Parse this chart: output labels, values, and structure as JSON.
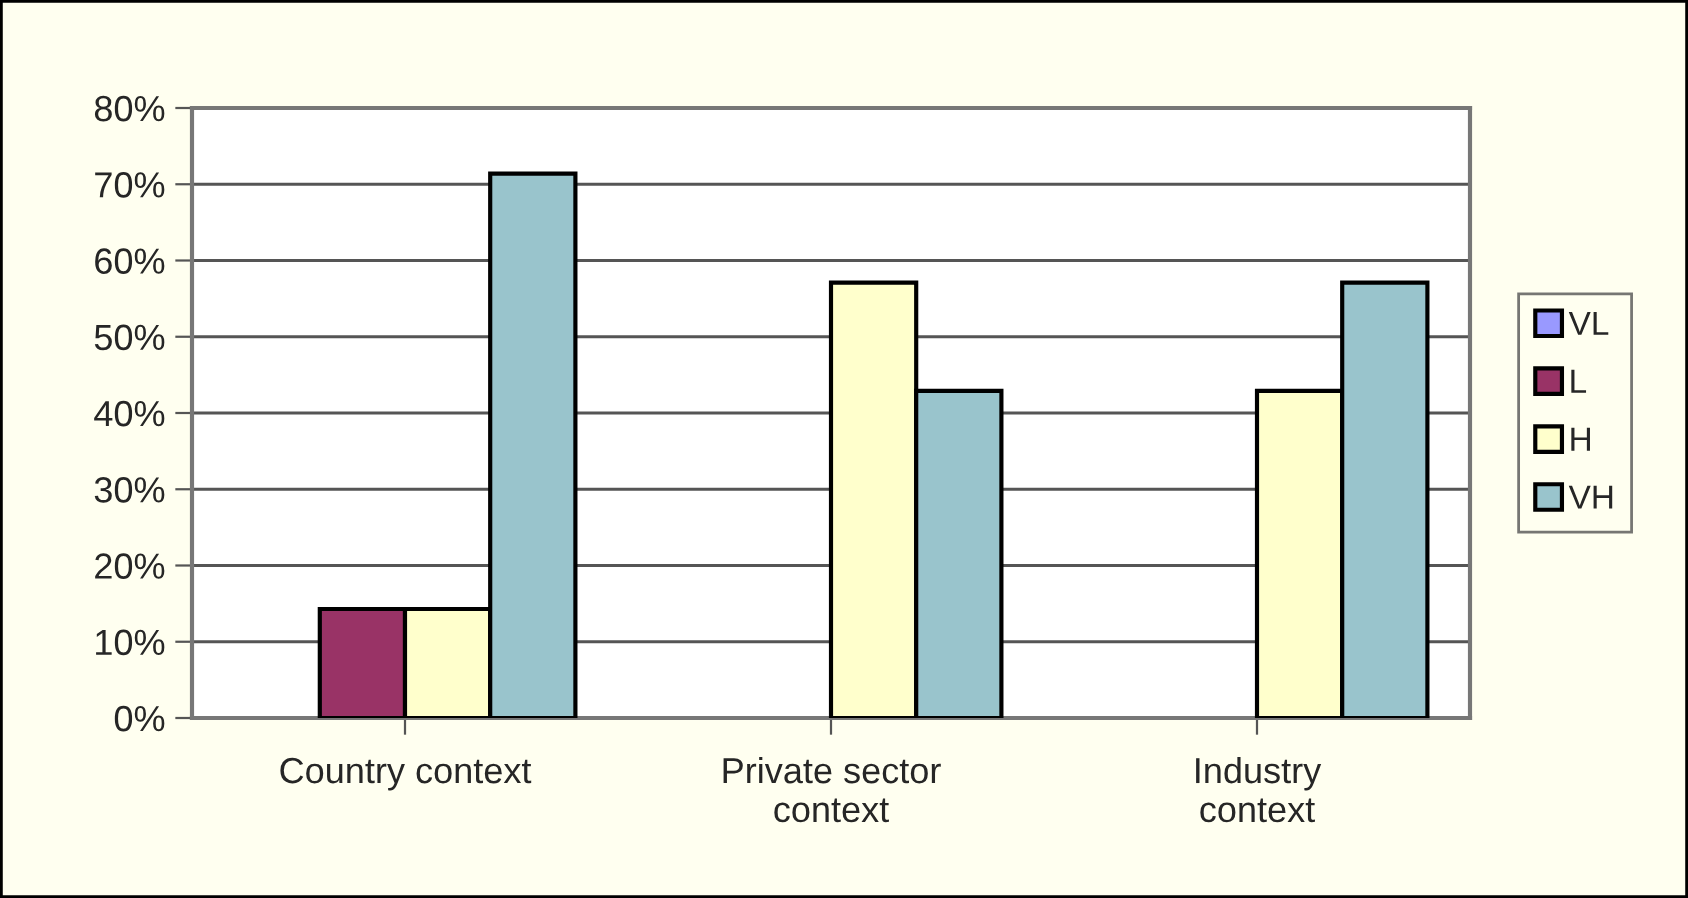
{
  "chart_data": {
    "type": "bar",
    "categories": [
      "Country context",
      "Private sector\ncontext",
      "Industry\ncontext"
    ],
    "series": [
      {
        "name": "VL",
        "color": "#9999ff",
        "values": [
          null,
          null,
          null
        ]
      },
      {
        "name": "L",
        "color": "#993366",
        "values": [
          14.3,
          null,
          null
        ]
      },
      {
        "name": "H",
        "color": "#ffffcc",
        "values": [
          14.3,
          57.1,
          42.9
        ]
      },
      {
        "name": "VH",
        "color": "#99c4cc",
        "values": [
          71.4,
          42.9,
          57.1
        ]
      }
    ],
    "ylim": [
      0,
      80
    ],
    "yticks": [
      {
        "value": 0,
        "label": "0%"
      },
      {
        "value": 10,
        "label": "10%"
      },
      {
        "value": 20,
        "label": "20%"
      },
      {
        "value": 30,
        "label": "30%"
      },
      {
        "value": 40,
        "label": "40%"
      },
      {
        "value": 50,
        "label": "50%"
      },
      {
        "value": 60,
        "label": "60%"
      },
      {
        "value": 70,
        "label": "70%"
      },
      {
        "value": 80,
        "label": "80%"
      }
    ],
    "grid": "y",
    "legend": "right"
  }
}
